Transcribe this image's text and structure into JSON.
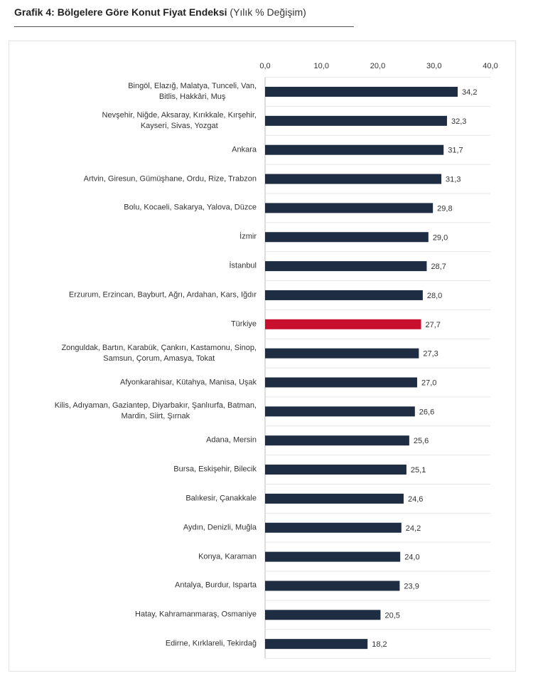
{
  "chart_data": {
    "type": "bar",
    "orientation": "horizontal",
    "title": "Grafik 4: Bölgelere Göre Konut Fiyat Endeksi",
    "subtitle": "(Yılık % Değişim)",
    "xlim": [
      0,
      40
    ],
    "ticks": [
      "0,0",
      "10,0",
      "20,0",
      "30,0",
      "40,0"
    ],
    "tick_values": [
      0,
      10,
      20,
      30,
      40
    ],
    "categories": [
      "Bingöl, Elazığ, Malatya, Tunceli, Van,\nBitlis, Hakkâri, Muş",
      "Nevşehir, Niğde, Aksaray, Kırıkkale, Kırşehir,\nKayseri, Sivas, Yozgat",
      "Ankara",
      "Artvin, Giresun, Gümüşhane, Ordu, Rize, Trabzon",
      "Bolu, Kocaeli, Sakarya, Yalova, Düzce",
      "İzmir",
      "İstanbul",
      "Erzurum, Erzincan, Bayburt, Ağrı, Ardahan, Kars, Iğdır",
      "Türkiye",
      "Zonguldak, Bartın, Karabük, Çankırı, Kastamonu, Sinop,\nSamsun, Çorum, Amasya, Tokat",
      "Afyonkarahisar, Kütahya, Manisa, Uşak",
      "Kilis, Adıyaman, Gaziantep, Diyarbakır, Şanlıurfa, Batman,\nMardin, Siirt, Şırnak",
      "Adana, Mersin",
      "Bursa, Eskişehir, Bilecik",
      "Balıkesir, Çanakkale",
      "Aydın, Denizli, Muğla",
      "Konya, Karaman",
      "Antalya, Burdur, Isparta",
      "Hatay, Kahramanmaraş, Osmaniye",
      "Edirne, Kırklareli, Tekirdağ"
    ],
    "values": [
      34.2,
      32.3,
      31.7,
      31.3,
      29.8,
      29.0,
      28.7,
      28.0,
      27.7,
      27.3,
      27.0,
      26.6,
      25.6,
      25.1,
      24.6,
      24.2,
      24.0,
      23.9,
      20.5,
      18.2
    ],
    "value_labels": [
      "34,2",
      "32,3",
      "31,7",
      "31,3",
      "29,8",
      "29,0",
      "28,7",
      "28,0",
      "27,7",
      "27,3",
      "27,0",
      "26,6",
      "25,6",
      "25,1",
      "24,6",
      "24,2",
      "24,0",
      "23,9",
      "20,5",
      "18,2"
    ],
    "highlight": "Türkiye",
    "colors": {
      "bar": "#1e2d42",
      "highlight": "#c8102e"
    }
  }
}
